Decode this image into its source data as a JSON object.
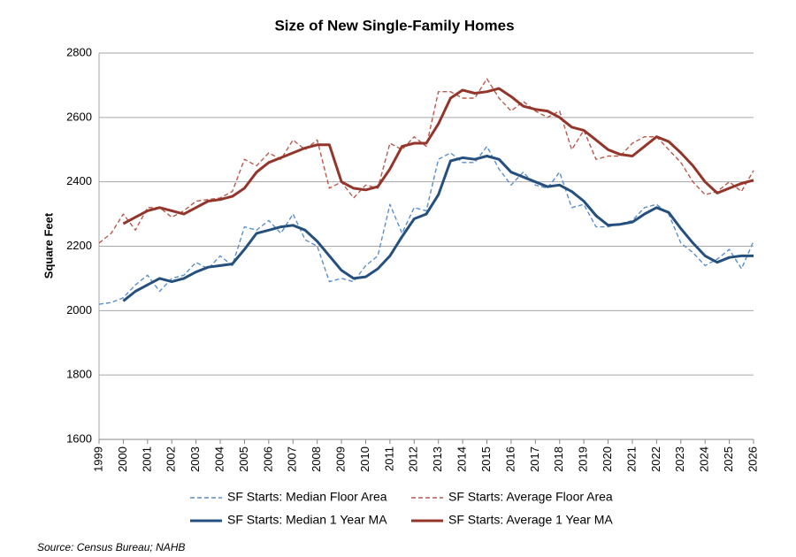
{
  "chart_data": {
    "type": "line",
    "title": "Size of New Single-Family Homes",
    "y_label": "Square Feet",
    "source": "Source: Census Bureau; NAHB",
    "x": [
      1999,
      1999.5,
      2000,
      2000.5,
      2001,
      2001.5,
      2002,
      2002.5,
      2003,
      2003.5,
      2004,
      2004.5,
      2005,
      2005.5,
      2006,
      2006.5,
      2007,
      2007.5,
      2008,
      2008.5,
      2009,
      2009.5,
      2010,
      2010.5,
      2011,
      2011.5,
      2012,
      2012.5,
      2013,
      2013.5,
      2014,
      2014.5,
      2015,
      2015.5,
      2016,
      2016.5,
      2017,
      2017.5,
      2018,
      2018.5,
      2019,
      2019.5,
      2020,
      2020.5,
      2021,
      2021.5,
      2022,
      2022.5,
      2023,
      2023.5,
      2024,
      2024.5,
      2025,
      2025.5,
      2026
    ],
    "series": [
      {
        "name": "SF Starts: Median Floor Area",
        "color": "#5b8fc9",
        "line_style": "dashed",
        "values": [
          2020,
          2025,
          2040,
          2080,
          2110,
          2060,
          2100,
          2110,
          2150,
          2130,
          2170,
          2140,
          2260,
          2250,
          2280,
          2240,
          2300,
          2220,
          2200,
          2090,
          2100,
          2090,
          2140,
          2170,
          2330,
          2240,
          2320,
          2310,
          2470,
          2490,
          2460,
          2460,
          2510,
          2440,
          2390,
          2430,
          2390,
          2380,
          2430,
          2320,
          2330,
          2260,
          2260,
          2270,
          2280,
          2320,
          2330,
          2300,
          2210,
          2180,
          2140,
          2160,
          2190,
          2130,
          2215
        ]
      },
      {
        "name": "SF Starts: Average Floor Area",
        "color": "#b85a4e",
        "line_style": "dashed",
        "values": [
          2210,
          2240,
          2300,
          2250,
          2320,
          2320,
          2290,
          2310,
          2340,
          2345,
          2350,
          2370,
          2470,
          2450,
          2490,
          2470,
          2530,
          2500,
          2530,
          2380,
          2400,
          2350,
          2390,
          2380,
          2520,
          2500,
          2540,
          2510,
          2680,
          2680,
          2660,
          2660,
          2720,
          2660,
          2620,
          2650,
          2620,
          2600,
          2620,
          2500,
          2560,
          2470,
          2480,
          2480,
          2520,
          2540,
          2540,
          2500,
          2460,
          2400,
          2360,
          2370,
          2400,
          2370,
          2435
        ]
      },
      {
        "name": "SF Starts: Median 1 Year MA",
        "color": "#25507e",
        "line_style": "solid",
        "values": [
          null,
          null,
          2030,
          2060,
          2080,
          2100,
          2090,
          2100,
          2120,
          2135,
          2140,
          2145,
          2190,
          2240,
          2250,
          2260,
          2265,
          2250,
          2215,
          2170,
          2125,
          2100,
          2105,
          2130,
          2170,
          2230,
          2285,
          2300,
          2360,
          2465,
          2475,
          2470,
          2480,
          2470,
          2430,
          2415,
          2400,
          2385,
          2390,
          2370,
          2340,
          2295,
          2265,
          2268,
          2275,
          2300,
          2320,
          2305,
          2255,
          2210,
          2170,
          2150,
          2165,
          2170,
          2170
        ]
      },
      {
        "name": "SF Starts: Average 1 Year MA",
        "color": "#93352a",
        "line_style": "solid",
        "values": [
          null,
          null,
          2270,
          2290,
          2310,
          2320,
          2310,
          2300,
          2320,
          2340,
          2345,
          2355,
          2380,
          2430,
          2460,
          2475,
          2490,
          2505,
          2515,
          2515,
          2400,
          2380,
          2375,
          2385,
          2440,
          2510,
          2520,
          2520,
          2580,
          2660,
          2685,
          2675,
          2680,
          2690,
          2665,
          2635,
          2625,
          2620,
          2600,
          2570,
          2560,
          2530,
          2500,
          2485,
          2480,
          2510,
          2540,
          2525,
          2490,
          2450,
          2400,
          2365,
          2380,
          2395,
          2405
        ]
      }
    ],
    "xlim": [
      1999,
      2026
    ],
    "xticks": [
      1999,
      2000,
      2001,
      2002,
      2003,
      2004,
      2005,
      2006,
      2007,
      2008,
      2009,
      2010,
      2011,
      2012,
      2013,
      2014,
      2015,
      2016,
      2017,
      2018,
      2019,
      2020,
      2021,
      2022,
      2023,
      2024,
      2025,
      2026
    ],
    "ylim": [
      1600,
      2800
    ],
    "yticks": [
      1600,
      1800,
      2000,
      2200,
      2400,
      2600,
      2800
    ],
    "grid": true,
    "legend": "bottom"
  }
}
